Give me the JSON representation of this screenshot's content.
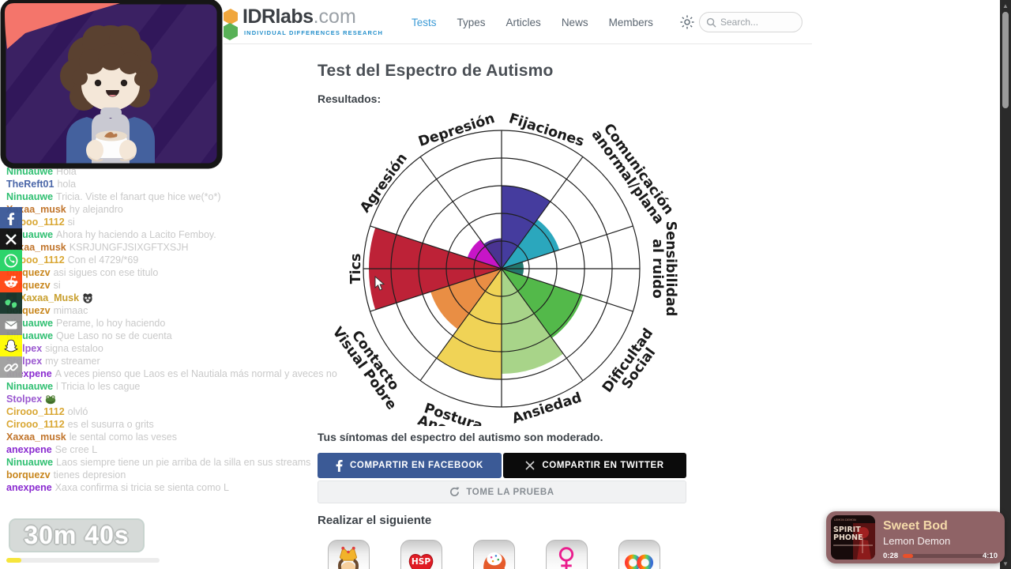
{
  "header": {
    "logo_main": "IDRlabs",
    "logo_tld": ".com",
    "logo_sub": "INDIVIDUAL DIFFERENCES RESEARCH",
    "nav": [
      {
        "label": "Tests",
        "active": true
      },
      {
        "label": "Types",
        "active": false
      },
      {
        "label": "Articles",
        "active": false
      },
      {
        "label": "News",
        "active": false
      },
      {
        "label": "Members",
        "active": false
      }
    ],
    "search_placeholder": "Search..."
  },
  "main": {
    "title": "Test del Espectro de Autismo",
    "results_label": "Resultados:",
    "result_text": "Tus síntomas del espectro del autismo son moderado.",
    "share_facebook": "COMPARTIR EN FACEBOOK",
    "share_twitter": "COMPARTIR EN TWITTER",
    "retake": "TOME LA PRUEBA",
    "next_heading": "Realizar el siguiente",
    "next_tiles": [
      "king",
      "hsp-heart",
      "brain-head",
      "female-symbol",
      "rainbow-infinity"
    ]
  },
  "chart_data": {
    "type": "polar-wedge",
    "categories": [
      "Fijaciones",
      "Comunicación\nanormal/plana",
      "Sensibilidad\nal ruido",
      "Dificultad\nSocial",
      "Ansiedad",
      "Postura\nAnormal",
      "Contacto\nVisual Pobre",
      "Tics",
      "Agresión",
      "Depresión"
    ],
    "values": [
      3.0,
      2.2,
      0.8,
      3.1,
      3.8,
      4.0,
      2.7,
      4.8,
      1.3,
      1.1
    ],
    "colors": [
      "#453c9e",
      "#2ba7bd",
      "#23796f",
      "#53b94a",
      "#a8d489",
      "#f0d356",
      "#e98e44",
      "#bd2237",
      "#c715c7",
      "#4a3492"
    ],
    "scale_max": 5,
    "rings": 5,
    "start_angle_deg": 72,
    "sector_deg": 36,
    "direction": "clockwise",
    "grid": true,
    "title": "",
    "xlabel": "",
    "ylabel": ""
  },
  "chat": {
    "messages": [
      {
        "u": "Ninuauwe",
        "c": "#2fbf71",
        "t": "Hola"
      },
      {
        "u": "TheReft01",
        "c": "#4a66a8",
        "t": "hola"
      },
      {
        "u": "Ninuauwe",
        "c": "#2fbf71",
        "t": "Tricia. Viste el fanart que hice we(*o*)"
      },
      {
        "u": "Xaxaa_musk",
        "c": "#c1752c",
        "t": "hy alejandro"
      },
      {
        "u": "Cirooo_1112",
        "c": "#d9a733",
        "t": "si"
      },
      {
        "u": "Ninuauwe",
        "c": "#2fbf71",
        "t": "Ahora hy haciendo a Lacito Femboy."
      },
      {
        "u": "Xaxaa_musk",
        "c": "#c1752c",
        "t": "KSRJUNGFJSIXGFTXSJH"
      },
      {
        "u": "Cirooo_1112",
        "c": "#d9a733",
        "t": "Con el 4729/*69"
      },
      {
        "u": "borquezv",
        "c": "#c8861c",
        "t": "asi sigues con ese titulo"
      },
      {
        "u": "borquezv",
        "c": "#c8861c",
        "t": "si"
      },
      {
        "u": "Xaxaa_Musk",
        "c": "#c9a02f",
        "t": "",
        "badge": true,
        "emote": "panda"
      },
      {
        "u": "borquezv",
        "c": "#c8861c",
        "t": "mimaac"
      },
      {
        "u": "Ninuauwe",
        "c": "#2fbf71",
        "t": "Perame, lo hoy haciendo"
      },
      {
        "u": "Ninuauwe",
        "c": "#2fbf71",
        "t": "Que Laso no se de cuenta"
      },
      {
        "u": "Stolpex",
        "c": "#9b59d0",
        "t": "signa estaloo"
      },
      {
        "u": "Stolpex",
        "c": "#9b59d0",
        "t": "my streamer"
      },
      {
        "u": "anexpene",
        "c": "#8a2bd0",
        "t": "A veces pienso que Laos es el Nautiala más normal y aveces no"
      },
      {
        "u": "Ninuauwe",
        "c": "#2fbf71",
        "t": "l Tricia lo les cague"
      },
      {
        "u": "Stolpex",
        "c": "#9b59d0",
        "t": "",
        "emote": "frog"
      },
      {
        "u": "Cirooo_1112",
        "c": "#d9a733",
        "t": "olvló"
      },
      {
        "u": "Cirooo_1112",
        "c": "#d9a733",
        "t": "es el susurra o grits"
      },
      {
        "u": "Xaxaa_musk",
        "c": "#c1752c",
        "t": "le sental como las veses"
      },
      {
        "u": "anexpene",
        "c": "#8a2bd0",
        "t": "Se cree L"
      },
      {
        "u": "Ninuauwe",
        "c": "#2fbf71",
        "t": "Laos siempre tiene un pie arriba de la silla en sus streams"
      },
      {
        "u": "borquezv",
        "c": "#c8861c",
        "t": "tienes depresion"
      },
      {
        "u": "anexpene",
        "c": "#8a2bd0",
        "t": "Xaxa confirma si tricia se sienta como L"
      }
    ]
  },
  "share_rail": [
    {
      "name": "facebook",
      "bg": "#3b5998"
    },
    {
      "name": "x-twitter",
      "bg": "#0f0f0f"
    },
    {
      "name": "whatsapp",
      "bg": "#25d366"
    },
    {
      "name": "reddit",
      "bg": "#ff4512"
    },
    {
      "name": "gab-birds",
      "bg": "#14352a"
    },
    {
      "name": "email",
      "bg": "#8e8e8e"
    },
    {
      "name": "snapchat",
      "bg": "#fffc00"
    },
    {
      "name": "link",
      "bg": "#a0a0a0"
    }
  ],
  "timer": {
    "label": "30m 40s",
    "progress_pct": 10
  },
  "player": {
    "title": "Sweet Bod",
    "artist": "Lemon Demon",
    "elapsed": "0:28",
    "duration": "4:10",
    "progress_pct": 11,
    "album_artist": "LEMON DEMON",
    "album_line1": "SPIRIT",
    "album_line2": "PHONE"
  }
}
